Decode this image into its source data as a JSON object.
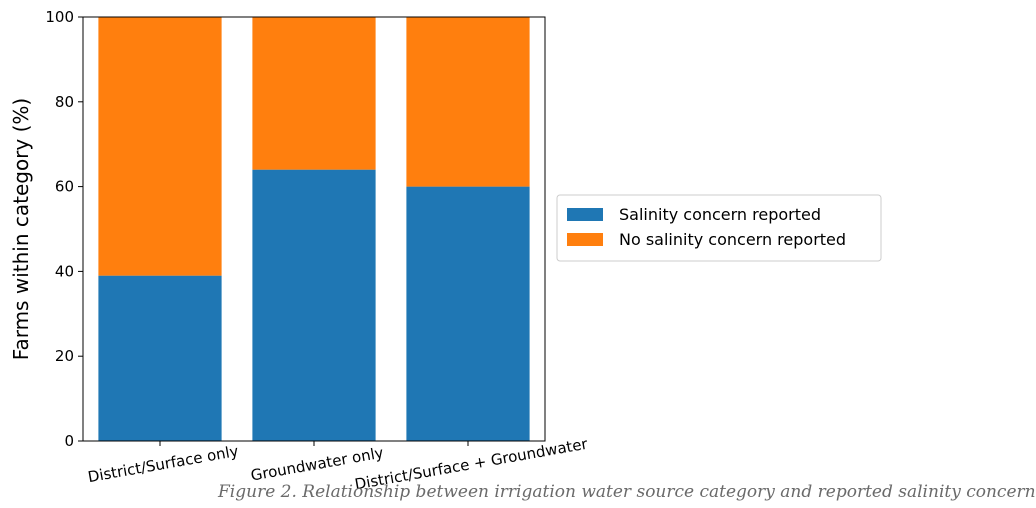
{
  "chart_data": {
    "type": "bar",
    "stacked": true,
    "categories": [
      "District/Surface only",
      "Groundwater only",
      "District/Surface + Groundwater"
    ],
    "series": [
      {
        "name": "Salinity concern reported",
        "color": "#1f77b4",
        "values": [
          39,
          64,
          60
        ]
      },
      {
        "name": "No salinity concern reported",
        "color": "#ff7f0e",
        "values": [
          61,
          36,
          40
        ]
      }
    ],
    "xlabel": "",
    "ylabel": "Farms within category (%)",
    "ylim": [
      0,
      100
    ],
    "yticks": [
      0,
      20,
      40,
      60,
      80,
      100
    ],
    "grid": false,
    "legend_position": "right"
  },
  "caption": "Figure 2. Relationship between irrigation water source category and reported salinity concern"
}
